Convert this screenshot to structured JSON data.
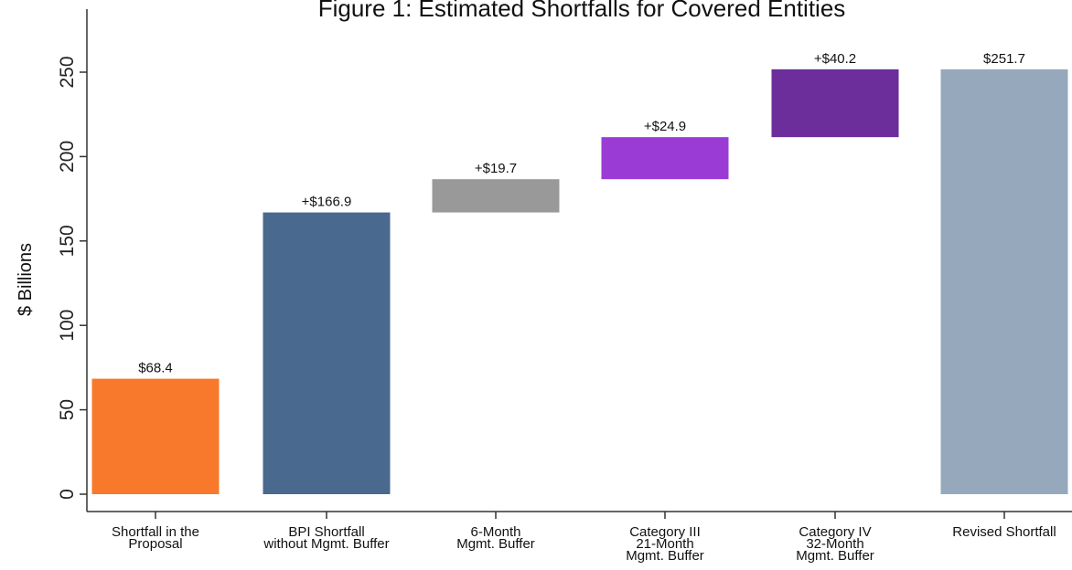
{
  "chart_data": {
    "type": "bar",
    "subtype": "waterfall",
    "title": "Figure 1: Estimated Shortfalls for Covered Entities",
    "ylabel": "$ Billions",
    "xlabel": "",
    "ylim": [
      0,
      270
    ],
    "yticks": [
      0,
      50,
      100,
      150,
      200,
      250
    ],
    "grid": false,
    "categories": [
      [
        "Shortfall in the",
        "Proposal"
      ],
      [
        "BPI Shortfall",
        "without Mgmt. Buffer"
      ],
      [
        "6-Month",
        "Mgmt. Buffer"
      ],
      [
        "Category III",
        "21-Month",
        "Mgmt. Buffer"
      ],
      [
        "Category IV",
        "32-Month",
        "Mgmt. Buffer"
      ],
      [
        "Revised Shortfall"
      ]
    ],
    "bars": [
      {
        "base": 0,
        "value": 68.4,
        "label": "$68.4",
        "color": "#F8792C"
      },
      {
        "base": 0,
        "value": 166.9,
        "label": "+$166.9",
        "color": "#4A698E"
      },
      {
        "base": 166.9,
        "value": 19.7,
        "label": "+$19.7",
        "color": "#999999"
      },
      {
        "base": 186.6,
        "value": 24.9,
        "label": "+$24.9",
        "color": "#9A3BD6"
      },
      {
        "base": 211.5,
        "value": 40.2,
        "label": "+$40.2",
        "color": "#6B2E9B"
      },
      {
        "base": 0,
        "value": 251.7,
        "label": "$251.7",
        "color": "#96A8BC"
      }
    ]
  }
}
